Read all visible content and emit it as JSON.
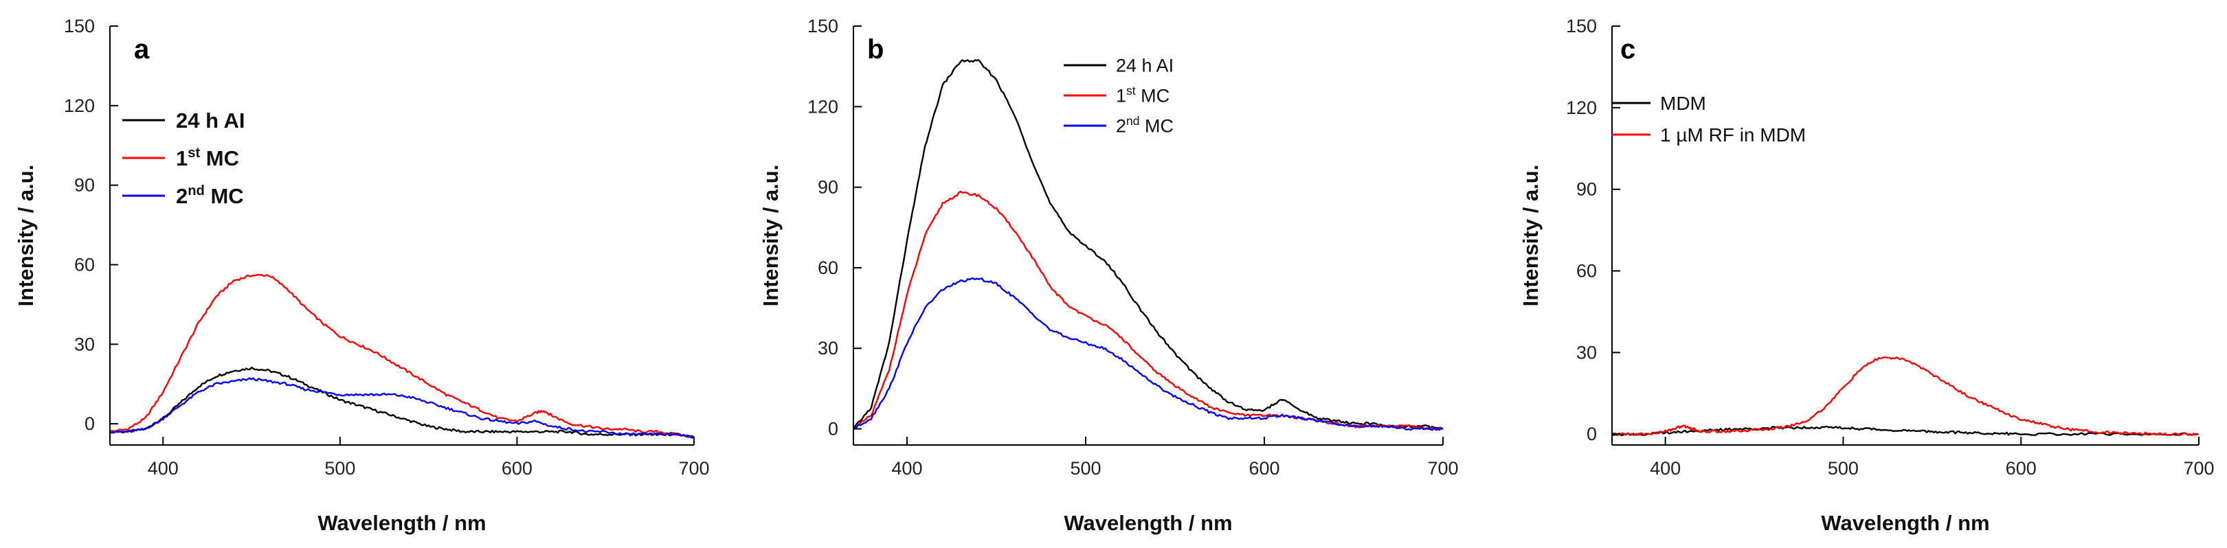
{
  "chart_data": [
    {
      "panel": "a",
      "type": "line",
      "xlabel": "Wavelength / nm",
      "ylabel": "Intensity / a.u.",
      "xlim": [
        370,
        700
      ],
      "ylim": [
        -8,
        150
      ],
      "xticks": [
        400,
        500,
        600,
        700
      ],
      "yticks": [
        0,
        30,
        60,
        90,
        120,
        150
      ],
      "legend_position": "top-left",
      "legend_bold": true,
      "series": [
        {
          "name": "24 h AI",
          "base": "24 h AI",
          "sup": "",
          "suffix": "",
          "color": "#000000",
          "x": [
            370,
            380,
            390,
            400,
            410,
            420,
            430,
            440,
            450,
            460,
            470,
            480,
            490,
            500,
            510,
            520,
            530,
            540,
            550,
            560,
            570,
            580,
            590,
            600,
            610,
            620,
            630,
            640,
            650,
            660,
            670,
            680,
            690,
            700
          ],
          "y": [
            -3,
            -3,
            -2,
            2,
            8,
            14,
            18,
            20,
            21,
            20,
            18,
            15,
            12,
            9,
            7,
            5,
            3,
            1,
            -1,
            -2,
            -3,
            -3,
            -3,
            -3,
            -3,
            -3,
            -3,
            -4,
            -4,
            -4,
            -4,
            -4,
            -4,
            -5
          ]
        },
        {
          "name": "1st MC",
          "base": "1",
          "sup": "st",
          "suffix": " MC",
          "color": "#ff0000",
          "x": [
            370,
            380,
            390,
            400,
            410,
            420,
            430,
            440,
            450,
            460,
            470,
            480,
            490,
            500,
            510,
            520,
            530,
            540,
            550,
            560,
            570,
            580,
            590,
            600,
            610,
            615,
            620,
            630,
            640,
            650,
            660,
            670,
            680,
            690,
            700
          ],
          "y": [
            -3,
            -2,
            2,
            12,
            25,
            38,
            48,
            54,
            56,
            56,
            51,
            44,
            38,
            33,
            30,
            27,
            23,
            19,
            15,
            11,
            8,
            5,
            2,
            1,
            4,
            5,
            3,
            0,
            -1,
            -2,
            -2,
            -3,
            -3,
            -4,
            -5
          ]
        },
        {
          "name": "2nd MC",
          "base": "2",
          "sup": "nd",
          "suffix": " MC",
          "color": "#0000ff",
          "x": [
            370,
            380,
            390,
            400,
            410,
            420,
            430,
            440,
            450,
            460,
            470,
            480,
            490,
            500,
            510,
            520,
            530,
            540,
            550,
            560,
            570,
            580,
            590,
            600,
            610,
            620,
            630,
            640,
            650,
            660,
            670,
            680,
            690,
            700
          ],
          "y": [
            -3,
            -3,
            -2,
            2,
            7,
            12,
            15,
            16,
            17,
            16,
            15,
            13,
            12,
            11,
            11,
            11,
            11,
            10,
            8,
            6,
            4,
            2,
            1,
            0,
            1,
            -1,
            -2,
            -3,
            -3,
            -4,
            -4,
            -4,
            -4,
            -5
          ]
        }
      ]
    },
    {
      "panel": "b",
      "type": "line",
      "xlabel": "Wavelength / nm",
      "ylabel": "Intensity / a.u.",
      "xlim": [
        370,
        700
      ],
      "ylim": [
        -6,
        150
      ],
      "xticks": [
        400,
        500,
        600,
        700
      ],
      "yticks": [
        0,
        30,
        60,
        90,
        120,
        150
      ],
      "legend_position": "top-center",
      "legend_bold": false,
      "series": [
        {
          "name": "24 h AI",
          "base": "24 h AI",
          "sup": "",
          "suffix": "",
          "color": "#000000",
          "x": [
            370,
            380,
            390,
            400,
            410,
            420,
            430,
            440,
            450,
            460,
            470,
            480,
            490,
            500,
            510,
            520,
            530,
            540,
            550,
            560,
            570,
            580,
            590,
            600,
            610,
            620,
            630,
            640,
            650,
            660,
            670,
            680,
            690,
            700
          ],
          "y": [
            0,
            8,
            32,
            70,
            105,
            128,
            137,
            137,
            130,
            117,
            100,
            84,
            74,
            68,
            63,
            55,
            45,
            36,
            28,
            21,
            15,
            10,
            7,
            7,
            11,
            7,
            4,
            3,
            2,
            2,
            1,
            1,
            1,
            0
          ]
        },
        {
          "name": "1st MC",
          "base": "1",
          "sup": "st",
          "suffix": " MC",
          "color": "#ff0000",
          "x": [
            370,
            380,
            390,
            400,
            410,
            420,
            430,
            440,
            450,
            460,
            470,
            480,
            490,
            500,
            510,
            520,
            530,
            540,
            550,
            560,
            570,
            580,
            590,
            600,
            610,
            620,
            630,
            640,
            650,
            660,
            670,
            680,
            690,
            700
          ],
          "y": [
            0,
            5,
            22,
            50,
            72,
            84,
            88,
            87,
            82,
            74,
            64,
            53,
            46,
            42,
            39,
            34,
            27,
            21,
            16,
            12,
            8,
            6,
            5,
            5,
            5,
            4,
            3,
            2,
            1,
            1,
            1,
            1,
            0,
            0
          ]
        },
        {
          "name": "2nd MC",
          "base": "2",
          "sup": "nd",
          "suffix": " MC",
          "color": "#0000ff",
          "x": [
            370,
            380,
            390,
            400,
            410,
            420,
            430,
            440,
            450,
            460,
            470,
            480,
            490,
            500,
            510,
            520,
            530,
            540,
            550,
            560,
            570,
            580,
            590,
            600,
            610,
            620,
            630,
            640,
            650,
            660,
            670,
            680,
            690,
            700
          ],
          "y": [
            0,
            4,
            15,
            32,
            45,
            52,
            55,
            56,
            54,
            49,
            43,
            37,
            34,
            32,
            30,
            26,
            21,
            16,
            12,
            9,
            6,
            4,
            4,
            4,
            5,
            4,
            3,
            2,
            1,
            1,
            1,
            0,
            0,
            0
          ]
        }
      ]
    },
    {
      "panel": "c",
      "type": "line",
      "xlabel": "Wavelength / nm",
      "ylabel": "Intensity / a.u.",
      "xlim": [
        370,
        700
      ],
      "ylim": [
        -4,
        150
      ],
      "xticks": [
        400,
        500,
        600,
        700
      ],
      "yticks": [
        0,
        30,
        60,
        90,
        120,
        150
      ],
      "legend_position": "top-left",
      "legend_bold": false,
      "series": [
        {
          "name": "MDM",
          "base": "MDM",
          "sup": "",
          "suffix": "",
          "color": "#000000",
          "x": [
            370,
            380,
            390,
            400,
            410,
            420,
            430,
            440,
            450,
            460,
            470,
            480,
            490,
            500,
            510,
            520,
            530,
            540,
            550,
            560,
            570,
            580,
            590,
            600,
            620,
            640,
            660,
            680,
            700
          ],
          "y": [
            0,
            0,
            0,
            0.5,
            1,
            1.2,
            1.5,
            1.8,
            2,
            2.2,
            2.4,
            2.5,
            2.5,
            2.3,
            2,
            1.7,
            1.4,
            1.1,
            0.9,
            0.7,
            0.5,
            0.3,
            0.2,
            0,
            0,
            0,
            0,
            0,
            0
          ]
        },
        {
          "name": "1 µM RF in MDM",
          "base": "1 µM RF in MDM",
          "sup": "",
          "suffix": "",
          "color": "#ff0000",
          "x": [
            370,
            380,
            390,
            400,
            405,
            410,
            415,
            420,
            430,
            440,
            450,
            460,
            470,
            480,
            490,
            500,
            510,
            520,
            530,
            540,
            550,
            560,
            570,
            580,
            590,
            600,
            610,
            620,
            630,
            640,
            650,
            660,
            670,
            680,
            690,
            700
          ],
          "y": [
            0,
            0,
            0,
            1,
            2,
            3,
            2,
            1,
            1,
            1.2,
            1.5,
            2,
            3,
            5,
            10,
            17,
            24,
            28,
            28,
            26,
            22,
            18,
            14,
            11,
            8,
            5.5,
            4,
            2.5,
            1.5,
            1,
            0.5,
            0.3,
            0.2,
            0,
            0,
            0
          ]
        }
      ]
    }
  ]
}
